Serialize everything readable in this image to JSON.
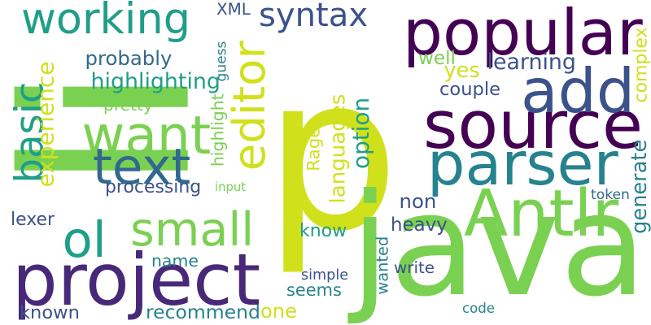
{
  "words": [
    {
      "text": "p",
      "color": "#d0e11c",
      "rotate": 0
    },
    {
      "text": "li",
      "color": "#7ad151",
      "rotate": 90
    },
    {
      "text": "java",
      "color": "#7ad151",
      "rotate": 0
    },
    {
      "text": "project",
      "color": "#482878",
      "rotate": 0
    },
    {
      "text": "source",
      "color": "#440154",
      "rotate": 0
    },
    {
      "text": "popular",
      "color": "#440154",
      "rotate": 0
    },
    {
      "text": "parser",
      "color": "#26828e",
      "rotate": 0
    },
    {
      "text": "add",
      "color": "#3b528b",
      "rotate": 0
    },
    {
      "text": "Antlr",
      "color": "#7ad151",
      "rotate": 0
    },
    {
      "text": "working",
      "color": "#1f9e89",
      "rotate": 0
    },
    {
      "text": "want",
      "color": "#7ad151",
      "rotate": 0
    },
    {
      "text": "editor",
      "color": "#d0e11c",
      "rotate": 90
    },
    {
      "text": "text",
      "color": "#31688e",
      "rotate": 0
    },
    {
      "text": "basic",
      "color": "#1f9e89",
      "rotate": 90
    },
    {
      "text": "ol",
      "color": "#1f9e89",
      "rotate": 0
    },
    {
      "text": "small",
      "color": "#7ad151",
      "rotate": 0
    },
    {
      "text": "syntax",
      "color": "#3b528b",
      "rotate": 0
    },
    {
      "text": "highlighting",
      "color": "#1f9e89",
      "rotate": 0
    },
    {
      "text": "probably",
      "color": "#31688e",
      "rotate": 0
    },
    {
      "text": "pretty",
      "color": "#7ad151",
      "rotate": 0
    },
    {
      "text": "XML",
      "color": "#3b528b",
      "rotate": 0
    },
    {
      "text": "guess",
      "color": "#26828e",
      "rotate": 90
    },
    {
      "text": "highlight",
      "color": "#7ad151",
      "rotate": 90
    },
    {
      "text": "experience",
      "color": "#d0e11c",
      "rotate": 90
    },
    {
      "text": "processing",
      "color": "#3b528b",
      "rotate": 0
    },
    {
      "text": "input",
      "color": "#7ad151",
      "rotate": 0
    },
    {
      "text": "lexer",
      "color": "#3b528b",
      "rotate": 0
    },
    {
      "text": "name",
      "color": "#26828e",
      "rotate": 0
    },
    {
      "text": "recommend",
      "color": "#26828e",
      "rotate": 0
    },
    {
      "text": "known",
      "color": "#3b528b",
      "rotate": 0
    },
    {
      "text": "one",
      "color": "#d0e11c",
      "rotate": 0
    },
    {
      "text": "seems",
      "color": "#26828e",
      "rotate": 0
    },
    {
      "text": "simple",
      "color": "#3b528b",
      "rotate": 0
    },
    {
      "text": "wanted",
      "color": "#26828e",
      "rotate": 90
    },
    {
      "text": "know",
      "color": "#1f9e89",
      "rotate": 0
    },
    {
      "text": "heavy",
      "color": "#3b528b",
      "rotate": 0
    },
    {
      "text": "non",
      "color": "#3b528b",
      "rotate": 0
    },
    {
      "text": "Ragel",
      "color": "#d0e11c",
      "rotate": 90
    },
    {
      "text": "languages",
      "color": "#d0e11c",
      "rotate": 90
    },
    {
      "text": "option",
      "color": "#1f9e89",
      "rotate": 90
    },
    {
      "text": "yes",
      "color": "#d0e11c",
      "rotate": 0
    },
    {
      "text": "well",
      "color": "#7ad151",
      "rotate": 0
    },
    {
      "text": "learning",
      "color": "#3b528b",
      "rotate": 0
    },
    {
      "text": "couple",
      "color": "#3b528b",
      "rotate": 0
    },
    {
      "text": "complex",
      "color": "#d0e11c",
      "rotate": 90
    },
    {
      "text": "generate",
      "color": "#26828e",
      "rotate": 90
    },
    {
      "text": "token",
      "color": "#31688e",
      "rotate": 0
    },
    {
      "text": "write",
      "color": "#3b528b",
      "rotate": 0
    },
    {
      "text": "code",
      "color": "#26828e",
      "rotate": 0
    }
  ]
}
